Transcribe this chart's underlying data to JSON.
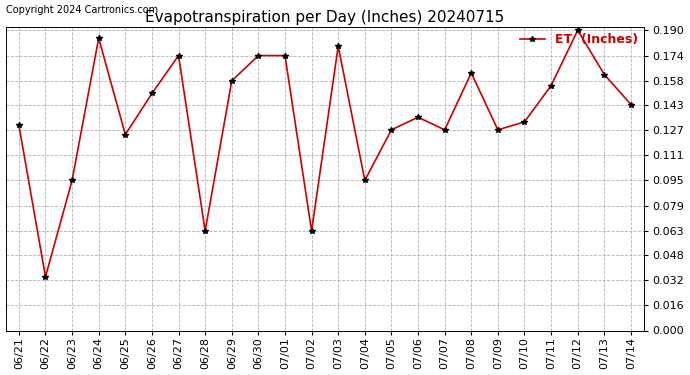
{
  "title": "Evapotranspiration per Day (Inches) 20240715",
  "copyright": "Copyright 2024 Cartronics.com",
  "legend_label": "ET  (Inches)",
  "dates": [
    "06/21",
    "06/22",
    "06/23",
    "06/24",
    "06/25",
    "06/26",
    "06/27",
    "06/28",
    "06/29",
    "06/30",
    "07/01",
    "07/02",
    "07/03",
    "07/04",
    "07/05",
    "07/06",
    "07/07",
    "07/08",
    "07/09",
    "07/10",
    "07/11",
    "07/12",
    "07/13",
    "07/14"
  ],
  "values": [
    0.13,
    0.034,
    0.095,
    0.185,
    0.124,
    0.15,
    0.174,
    0.063,
    0.158,
    0.174,
    0.174,
    0.063,
    0.18,
    0.095,
    0.127,
    0.135,
    0.127,
    0.163,
    0.127,
    0.132,
    0.155,
    0.19,
    0.162,
    0.143
  ],
  "line_color": "#cc0000",
  "marker_color": "#000000",
  "background_color": "#ffffff",
  "grid_color": "#aaaaaa",
  "ylim_min": 0.0,
  "ylim_max": 0.19,
  "yticks": [
    0.0,
    0.016,
    0.032,
    0.048,
    0.063,
    0.079,
    0.095,
    0.111,
    0.127,
    0.143,
    0.158,
    0.174,
    0.19
  ],
  "title_fontsize": 11,
  "copyright_fontsize": 7,
  "legend_fontsize": 9,
  "tick_fontsize": 8,
  "marker_size": 4,
  "line_width": 1.2
}
